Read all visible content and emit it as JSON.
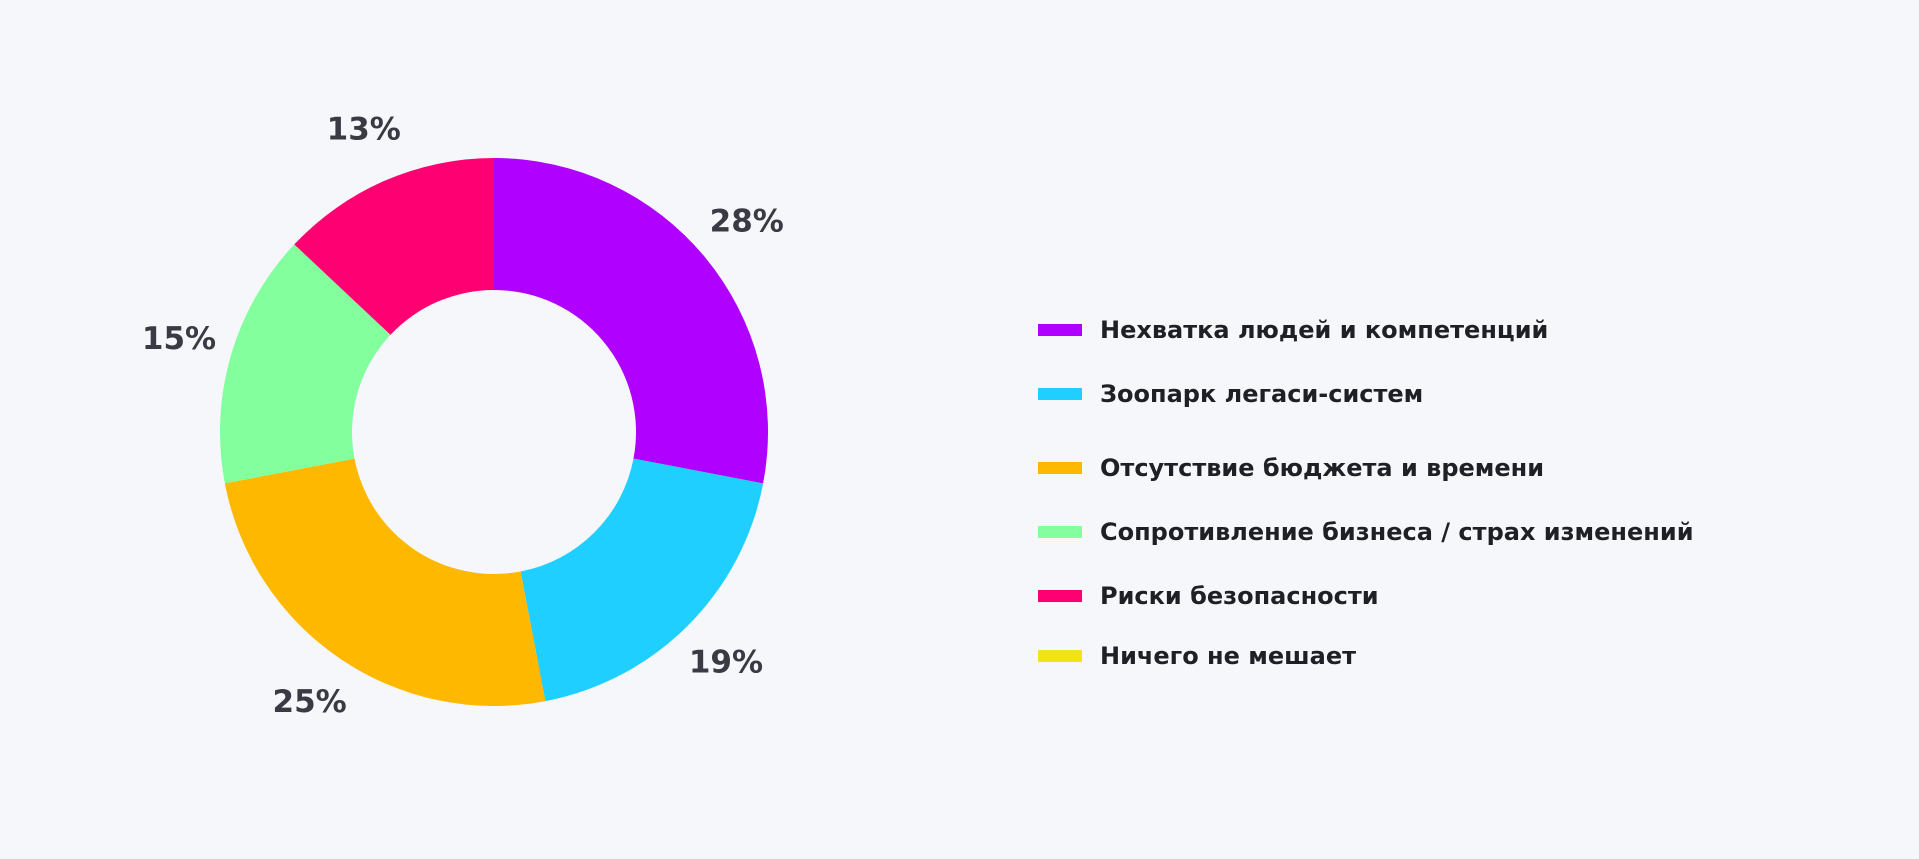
{
  "chart_data": {
    "type": "pie",
    "variant": "donut",
    "categories": [
      "Нехватка людей и компетенций",
      "Зоопарк легаси-систем",
      "Отсутствие бюджета и времени",
      "Сопротивление бизнеса / страх изменений",
      "Риски безопасности",
      "Ничего не мешает"
    ],
    "values": [
      28,
      19,
      25,
      15,
      13,
      0
    ],
    "value_labels": [
      "28%",
      "19%",
      "25%",
      "15%",
      "13%",
      ""
    ],
    "colors": [
      "#b000ff",
      "#1fcfff",
      "#ffb800",
      "#84ff9e",
      "#ff0073",
      "#f0e414"
    ],
    "title": "",
    "legend_position": "right"
  }
}
